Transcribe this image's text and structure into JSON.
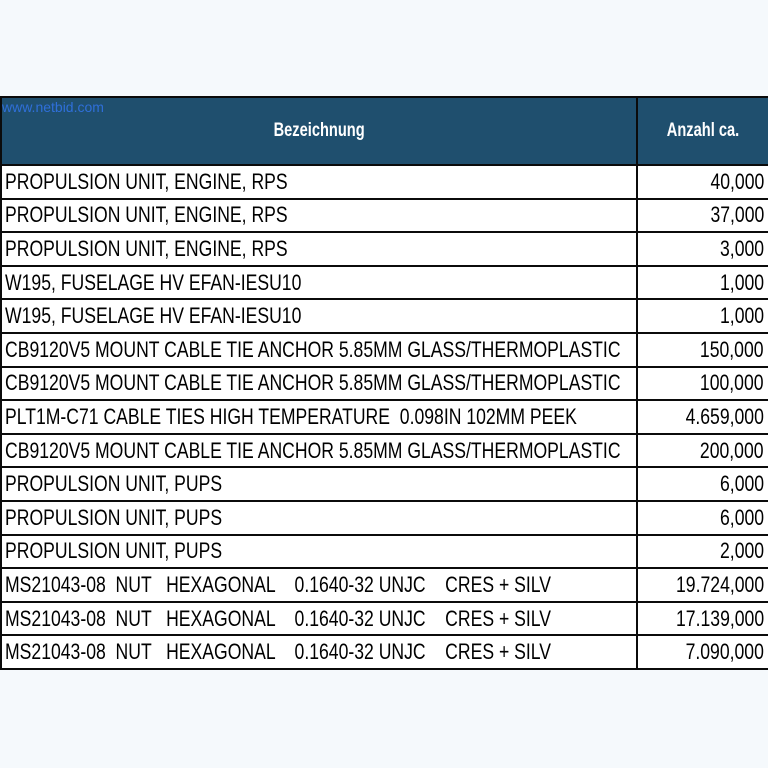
{
  "watermark": "www.netbid.com",
  "table": {
    "headers": {
      "description": "Bezeichnung",
      "quantity": "Anzahl ca."
    },
    "rows": [
      {
        "description": "PROPULSION UNIT, ENGINE, RPS",
        "quantity": "40,000"
      },
      {
        "description": "PROPULSION UNIT, ENGINE, RPS",
        "quantity": "37,000"
      },
      {
        "description": "PROPULSION UNIT, ENGINE, RPS",
        "quantity": "3,000"
      },
      {
        "description": "W195, FUSELAGE HV EFAN-IESU10",
        "quantity": "1,000"
      },
      {
        "description": "W195, FUSELAGE HV EFAN-IESU10",
        "quantity": "1,000"
      },
      {
        "description": "CB9120V5 MOUNT CABLE TIE ANCHOR 5.85MM GLASS/THERMOPLASTIC",
        "quantity": "150,000"
      },
      {
        "description": "CB9120V5 MOUNT CABLE TIE ANCHOR 5.85MM GLASS/THERMOPLASTIC",
        "quantity": "100,000"
      },
      {
        "description": "PLT1M-C71 CABLE TIES HIGH TEMPERATURE  0.098IN 102MM PEEK",
        "quantity": "4.659,000"
      },
      {
        "description": "CB9120V5 MOUNT CABLE TIE ANCHOR 5.85MM GLASS/THERMOPLASTIC",
        "quantity": "200,000"
      },
      {
        "description": "PROPULSION UNIT, PUPS",
        "quantity": "6,000"
      },
      {
        "description": "PROPULSION UNIT, PUPS",
        "quantity": "6,000"
      },
      {
        "description": "PROPULSION UNIT, PUPS",
        "quantity": "2,000"
      },
      {
        "description": "MS21043-08  NUT   HEXAGONAL    0.1640-32 UNJC    CRES + SILV",
        "quantity": "19.724,000"
      },
      {
        "description": "MS21043-08  NUT   HEXAGONAL    0.1640-32 UNJC    CRES + SILV",
        "quantity": "17.139,000"
      },
      {
        "description": "MS21043-08  NUT   HEXAGONAL    0.1640-32 UNJC    CRES + SILV",
        "quantity": "7.090,000"
      }
    ]
  },
  "colors": {
    "page_background": "#f5f9fc",
    "header_background": "#1f4f6e",
    "header_text": "#ffffff",
    "watermark": "#2f6fd9",
    "grid_lines": "#0b0b0b"
  }
}
